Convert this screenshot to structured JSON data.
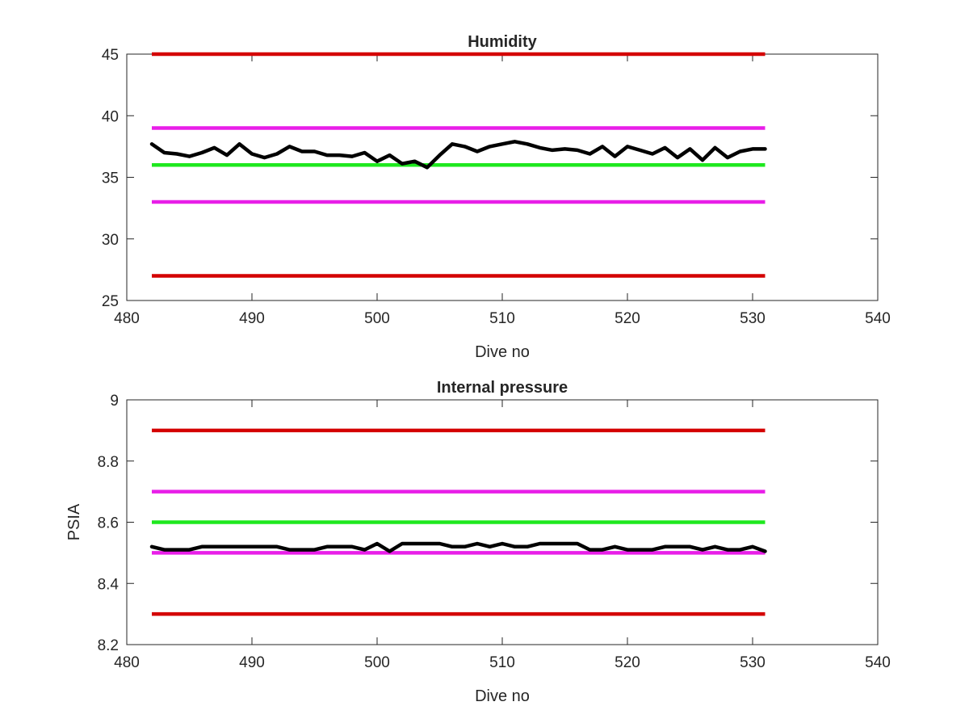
{
  "chart_data": [
    {
      "type": "line",
      "title": "Humidity",
      "xlabel": "Dive no",
      "ylabel": "",
      "xlim": [
        480,
        540
      ],
      "ylim": [
        25,
        45
      ],
      "xticks": [
        480,
        490,
        500,
        510,
        520,
        530,
        540
      ],
      "yticks": [
        25,
        30,
        35,
        40,
        45
      ],
      "grid": false,
      "colors": {
        "red": "#d40000",
        "magenta": "#e81ee8",
        "green": "#1ee81e",
        "data": "#000000"
      },
      "reference_lines": [
        {
          "color": "red",
          "y": 45,
          "x": [
            482,
            531
          ]
        },
        {
          "color": "magenta",
          "y": 39,
          "x": [
            482,
            531
          ]
        },
        {
          "color": "green",
          "y": 36,
          "x": [
            482,
            531
          ]
        },
        {
          "color": "magenta",
          "y": 33,
          "x": [
            482,
            531
          ]
        },
        {
          "color": "red",
          "y": 27,
          "x": [
            482,
            531
          ]
        }
      ],
      "series": [
        {
          "color": "data",
          "x": [
            482,
            483,
            484,
            485,
            486,
            487,
            488,
            489,
            490,
            491,
            492,
            493,
            494,
            495,
            496,
            497,
            498,
            499,
            500,
            501,
            502,
            503,
            504,
            505,
            506,
            507,
            508,
            509,
            510,
            511,
            512,
            513,
            514,
            515,
            516,
            517,
            518,
            519,
            520,
            521,
            522,
            523,
            524,
            525,
            526,
            527,
            528,
            529,
            530,
            531
          ],
          "y": [
            37.7,
            37.0,
            36.9,
            36.7,
            37.0,
            37.4,
            36.8,
            37.7,
            36.9,
            36.6,
            36.9,
            37.5,
            37.1,
            37.1,
            36.8,
            36.8,
            36.7,
            37.0,
            36.3,
            36.8,
            36.1,
            36.3,
            35.8,
            36.8,
            37.7,
            37.5,
            37.1,
            37.5,
            37.7,
            37.9,
            37.7,
            37.4,
            37.2,
            37.3,
            37.2,
            36.9,
            37.5,
            36.7,
            37.5,
            37.2,
            36.9,
            37.4,
            36.6,
            37.3,
            36.4,
            37.4,
            36.6,
            37.1,
            37.3,
            37.3
          ]
        }
      ]
    },
    {
      "type": "line",
      "title": "Internal pressure",
      "xlabel": "Dive no",
      "ylabel": "PSIA",
      "xlim": [
        480,
        540
      ],
      "ylim": [
        8.2,
        9
      ],
      "xticks": [
        480,
        490,
        500,
        510,
        520,
        530,
        540
      ],
      "yticks": [
        8.2,
        8.4,
        8.6,
        8.8,
        9
      ],
      "grid": false,
      "colors": {
        "red": "#d40000",
        "magenta": "#e81ee8",
        "green": "#1ee81e",
        "data": "#000000"
      },
      "reference_lines": [
        {
          "color": "red",
          "y": 8.9,
          "x": [
            482,
            531
          ]
        },
        {
          "color": "magenta",
          "y": 8.7,
          "x": [
            482,
            531
          ]
        },
        {
          "color": "green",
          "y": 8.6,
          "x": [
            482,
            531
          ]
        },
        {
          "color": "magenta",
          "y": 8.5,
          "x": [
            482,
            531
          ]
        },
        {
          "color": "red",
          "y": 8.3,
          "x": [
            482,
            531
          ]
        }
      ],
      "series": [
        {
          "color": "data",
          "x": [
            482,
            483,
            484,
            485,
            486,
            487,
            488,
            489,
            490,
            491,
            492,
            493,
            494,
            495,
            496,
            497,
            498,
            499,
            500,
            501,
            502,
            503,
            504,
            505,
            506,
            507,
            508,
            509,
            510,
            511,
            512,
            513,
            514,
            515,
            516,
            517,
            518,
            519,
            520,
            521,
            522,
            523,
            524,
            525,
            526,
            527,
            528,
            529,
            530,
            531
          ],
          "y": [
            8.52,
            8.51,
            8.51,
            8.51,
            8.52,
            8.52,
            8.52,
            8.52,
            8.52,
            8.52,
            8.52,
            8.51,
            8.51,
            8.51,
            8.52,
            8.52,
            8.52,
            8.51,
            8.53,
            8.505,
            8.53,
            8.53,
            8.53,
            8.53,
            8.52,
            8.52,
            8.53,
            8.52,
            8.53,
            8.52,
            8.52,
            8.53,
            8.53,
            8.53,
            8.53,
            8.51,
            8.51,
            8.52,
            8.51,
            8.51,
            8.51,
            8.52,
            8.52,
            8.52,
            8.51,
            8.52,
            8.51,
            8.51,
            8.52,
            8.505
          ]
        }
      ]
    }
  ]
}
